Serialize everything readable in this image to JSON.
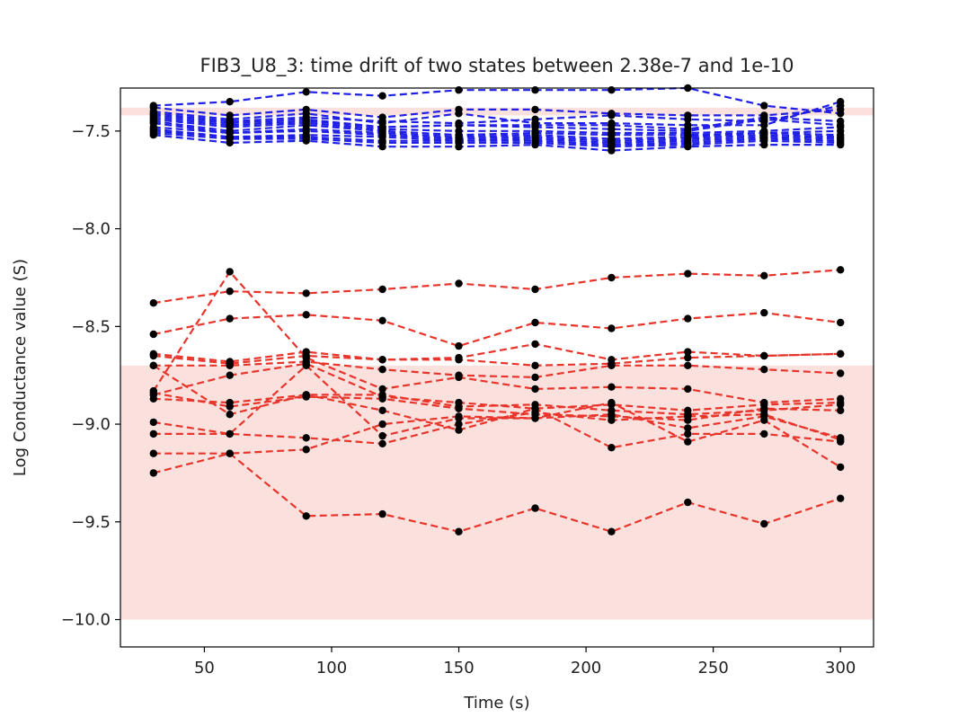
{
  "chart_data": {
    "type": "line",
    "title": "FIB3_U8_3: time drift of two states between 2.38e-7 and 1e-10",
    "xlabel": "Time (s)",
    "ylabel": "Log Conductance value (S)",
    "xlim": [
      17,
      313
    ],
    "ylim": [
      -10.14,
      -7.28
    ],
    "xticks": [
      50,
      100,
      150,
      200,
      250,
      300
    ],
    "yticks": [
      -10.0,
      -9.5,
      -9.0,
      -8.5,
      -8.0,
      -7.5
    ],
    "ytick_labels": [
      "−10.0",
      "−9.5",
      "−9.0",
      "−8.5",
      "−8.0",
      "−7.5"
    ],
    "grid": false,
    "legend": "none",
    "bands": [
      {
        "y0": -7.42,
        "y1": -7.38,
        "color": "#fae1de"
      },
      {
        "y0": -10.0,
        "y1": -8.7,
        "color": "#fae1de"
      }
    ],
    "x": [
      30,
      60,
      90,
      120,
      150,
      180,
      210,
      240,
      270,
      300
    ],
    "marker_color": "#000000",
    "high_state": {
      "color": "#1f1fe6",
      "series": [
        [
          -7.37,
          -7.35,
          -7.3,
          -7.32,
          -7.29,
          -7.29,
          -7.29,
          -7.28,
          -7.37,
          -7.41
        ],
        [
          -7.38,
          -7.42,
          -7.39,
          -7.43,
          -7.39,
          -7.39,
          -7.41,
          -7.42,
          -7.42,
          -7.39
        ],
        [
          -7.4,
          -7.44,
          -7.41,
          -7.46,
          -7.41,
          -7.46,
          -7.46,
          -7.47,
          -7.47,
          -7.35
        ],
        [
          -7.41,
          -7.45,
          -7.43,
          -7.45,
          -7.46,
          -7.44,
          -7.42,
          -7.44,
          -7.45,
          -7.37
        ],
        [
          -7.42,
          -7.46,
          -7.44,
          -7.48,
          -7.47,
          -7.47,
          -7.47,
          -7.49,
          -7.43,
          -7.45
        ],
        [
          -7.43,
          -7.47,
          -7.45,
          -7.48,
          -7.47,
          -7.48,
          -7.49,
          -7.5,
          -7.44,
          -7.47
        ],
        [
          -7.44,
          -7.48,
          -7.46,
          -7.49,
          -7.5,
          -7.5,
          -7.51,
          -7.51,
          -7.5,
          -7.48
        ],
        [
          -7.45,
          -7.5,
          -7.47,
          -7.5,
          -7.52,
          -7.51,
          -7.52,
          -7.52,
          -7.51,
          -7.5
        ],
        [
          -7.46,
          -7.51,
          -7.49,
          -7.51,
          -7.53,
          -7.52,
          -7.54,
          -7.53,
          -7.51,
          -7.52
        ],
        [
          -7.48,
          -7.51,
          -7.5,
          -7.52,
          -7.54,
          -7.53,
          -7.55,
          -7.54,
          -7.52,
          -7.53
        ],
        [
          -7.49,
          -7.53,
          -7.52,
          -7.53,
          -7.55,
          -7.54,
          -7.56,
          -7.55,
          -7.53,
          -7.54
        ],
        [
          -7.5,
          -7.53,
          -7.53,
          -7.55,
          -7.55,
          -7.55,
          -7.57,
          -7.56,
          -7.54,
          -7.55
        ],
        [
          -7.51,
          -7.54,
          -7.54,
          -7.56,
          -7.56,
          -7.56,
          -7.58,
          -7.57,
          -7.55,
          -7.56
        ],
        [
          -7.52,
          -7.56,
          -7.55,
          -7.58,
          -7.58,
          -7.57,
          -7.6,
          -7.58,
          -7.57,
          -7.57
        ]
      ]
    },
    "low_state": {
      "color": "#e8352b",
      "series": [
        [
          -8.38,
          -8.32,
          -8.33,
          -8.31,
          -8.28,
          -8.31,
          -8.25,
          -8.23,
          -8.24,
          -8.21
        ],
        [
          -8.54,
          -8.46,
          -8.44,
          -8.47,
          -8.6,
          -8.48,
          -8.51,
          -8.46,
          -8.43,
          -8.48
        ],
        [
          -8.64,
          -8.68,
          -8.63,
          -8.67,
          -8.66,
          -8.59,
          -8.67,
          -8.63,
          -8.65,
          -8.64
        ],
        [
          -8.65,
          -8.69,
          -8.65,
          -8.67,
          -8.67,
          -8.7,
          -8.69,
          -8.66,
          -8.65,
          -8.64
        ],
        [
          -8.7,
          -8.7,
          -8.68,
          -8.72,
          -8.75,
          -8.76,
          -8.7,
          -8.7,
          -8.72,
          -8.74
        ],
        [
          -8.83,
          -8.22,
          -8.66,
          -8.82,
          -8.76,
          -8.82,
          -8.81,
          -8.82,
          -8.89,
          -8.87
        ],
        [
          -8.85,
          -8.75,
          -8.69,
          -8.86,
          -8.89,
          -8.92,
          -8.9,
          -8.93,
          -8.9,
          -8.89
        ],
        [
          -8.87,
          -8.89,
          -8.85,
          -8.85,
          -8.91,
          -8.9,
          -8.93,
          -8.95,
          -8.93,
          -8.9
        ],
        [
          -8.84,
          -8.91,
          -8.86,
          -8.87,
          -8.92,
          -8.95,
          -8.96,
          -8.98,
          -8.92,
          -8.93
        ],
        [
          -8.99,
          -9.05,
          -8.7,
          -9.06,
          -8.97,
          -8.97,
          -8.95,
          -9.02,
          -8.96,
          -9.07
        ],
        [
          -9.05,
          -9.05,
          -9.07,
          -9.1,
          -9.0,
          -8.94,
          -8.98,
          -8.96,
          -8.95,
          -9.08
        ],
        [
          -9.15,
          -9.15,
          -9.13,
          -9.0,
          -8.96,
          -8.97,
          -8.89,
          -9.09,
          -8.98,
          -9.22
        ],
        [
          -9.25,
          -9.15,
          -9.47,
          -9.46,
          -9.55,
          -9.43,
          -9.55,
          -9.4,
          -9.51,
          -9.38
        ],
        [
          -8.7,
          -8.95,
          -8.85,
          -8.93,
          -9.03,
          -8.92,
          -9.12,
          -9.05,
          -9.05,
          -9.09
        ]
      ]
    }
  }
}
